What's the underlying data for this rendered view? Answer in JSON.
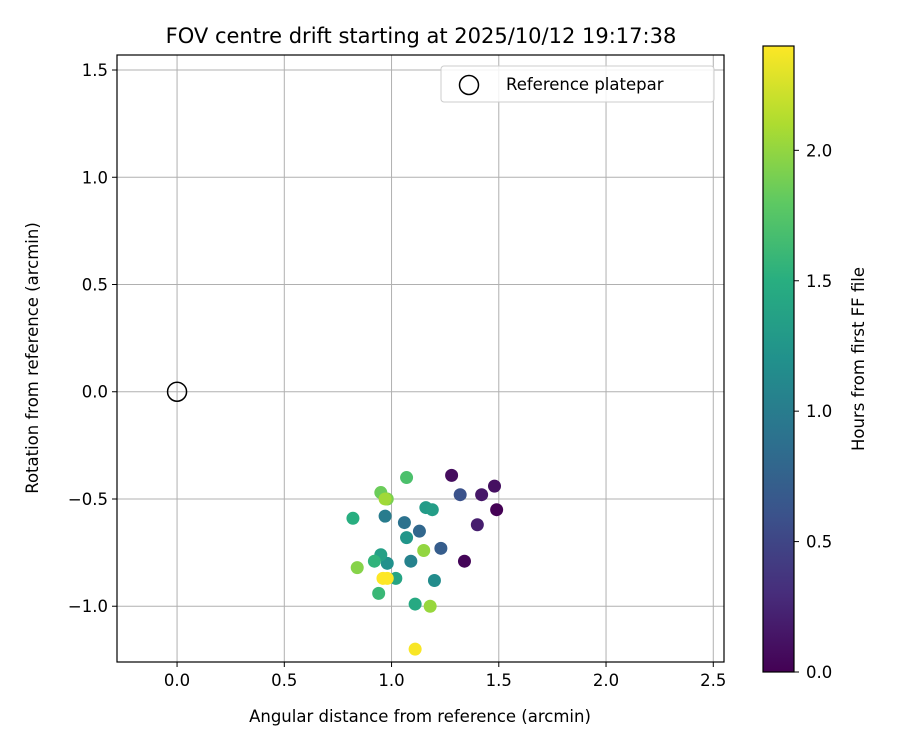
{
  "chart_data": {
    "type": "scatter",
    "title": "FOV centre drift starting at 2025/10/12 19:17:38",
    "xlabel": "Angular distance from reference (arcmin)",
    "ylabel": "Rotation from reference (arcmin)",
    "xlim": [
      -0.28,
      2.55
    ],
    "ylim": [
      -1.26,
      1.57
    ],
    "xticks": [
      0.0,
      0.5,
      1.0,
      1.5,
      2.0,
      2.5
    ],
    "xtick_labels": [
      "0.0",
      "0.5",
      "1.0",
      "1.5",
      "2.0",
      "2.5"
    ],
    "yticks": [
      -1.0,
      -0.5,
      0.0,
      0.5,
      1.0,
      1.5
    ],
    "ytick_labels": [
      "−1.0",
      "−0.5",
      "0.0",
      "0.5",
      "1.0",
      "1.5"
    ],
    "grid": true,
    "legend": {
      "placement": "top-right",
      "entries": [
        "Reference platepar"
      ]
    },
    "reference_point": {
      "x": 0.0,
      "y": 0.0
    },
    "colorbar": {
      "label": "Hours from first FF file",
      "colormap": "viridis",
      "range": [
        0.0,
        2.4
      ],
      "ticks": [
        0.0,
        0.5,
        1.0,
        1.5,
        2.0
      ],
      "tick_labels": [
        "0.0",
        "0.5",
        "1.0",
        "1.5",
        "2.0"
      ]
    },
    "points": [
      {
        "x": 1.49,
        "y": -0.55,
        "h": 0.0
      },
      {
        "x": 1.34,
        "y": -0.79,
        "h": 0.03
      },
      {
        "x": 1.28,
        "y": -0.39,
        "h": 0.08
      },
      {
        "x": 1.48,
        "y": -0.44,
        "h": 0.1
      },
      {
        "x": 1.42,
        "y": -0.48,
        "h": 0.15
      },
      {
        "x": 1.4,
        "y": -0.62,
        "h": 0.2
      },
      {
        "x": 1.32,
        "y": -0.48,
        "h": 0.6
      },
      {
        "x": 1.23,
        "y": -0.73,
        "h": 0.7
      },
      {
        "x": 1.13,
        "y": -0.65,
        "h": 0.8
      },
      {
        "x": 1.06,
        "y": -0.61,
        "h": 0.9
      },
      {
        "x": 0.97,
        "y": -0.58,
        "h": 1.0
      },
      {
        "x": 1.09,
        "y": -0.79,
        "h": 1.05
      },
      {
        "x": 1.2,
        "y": -0.88,
        "h": 1.15
      },
      {
        "x": 0.98,
        "y": -0.8,
        "h": 1.2
      },
      {
        "x": 1.07,
        "y": -0.68,
        "h": 1.25
      },
      {
        "x": 1.16,
        "y": -0.54,
        "h": 1.3
      },
      {
        "x": 1.19,
        "y": -0.55,
        "h": 1.32
      },
      {
        "x": 0.95,
        "y": -0.76,
        "h": 1.35
      },
      {
        "x": 1.02,
        "y": -0.87,
        "h": 1.4
      },
      {
        "x": 1.11,
        "y": -0.99,
        "h": 1.45
      },
      {
        "x": 0.82,
        "y": -0.59,
        "h": 1.5
      },
      {
        "x": 0.92,
        "y": -0.79,
        "h": 1.55
      },
      {
        "x": 0.94,
        "y": -0.94,
        "h": 1.6
      },
      {
        "x": 1.07,
        "y": -0.4,
        "h": 1.7
      },
      {
        "x": 0.95,
        "y": -0.47,
        "h": 1.85
      },
      {
        "x": 0.98,
        "y": -0.5,
        "h": 1.9
      },
      {
        "x": 0.84,
        "y": -0.82,
        "h": 1.95
      },
      {
        "x": 1.15,
        "y": -0.74,
        "h": 2.0
      },
      {
        "x": 1.18,
        "y": -1.0,
        "h": 2.02
      },
      {
        "x": 0.97,
        "y": -0.5,
        "h": 2.05
      },
      {
        "x": 0.96,
        "y": -0.87,
        "h": 2.4
      },
      {
        "x": 0.98,
        "y": -0.87,
        "h": 2.4
      },
      {
        "x": 1.11,
        "y": -1.2,
        "h": 2.38
      }
    ]
  }
}
